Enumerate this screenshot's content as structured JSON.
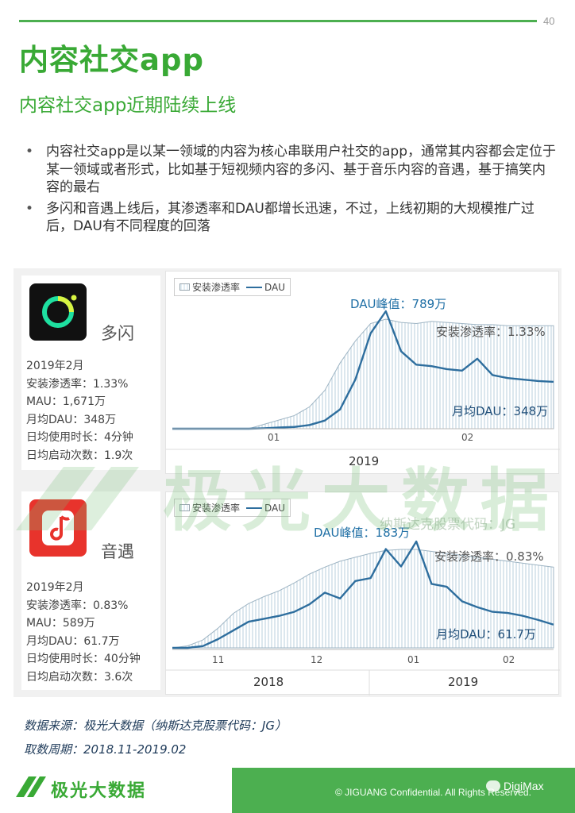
{
  "page_number": "40",
  "title": "内容社交app",
  "subtitle": "内容社交app近期陆续上线",
  "bullets": [
    "内容社交app是以某一领域的内容为核心串联用户社交的app，通常其内容都会定位于某一领域或者形式，比如基于短视频内容的多闪、基于音乐内容的音遇，基于搞笑内容的最右",
    "多闪和音遇上线后，其渗透率和DAU都增长迅速，不过，上线初期的大规模推广过后，DAU有不同程度的回落"
  ],
  "apps": [
    {
      "name": "多闪",
      "icon": "duoshan-app-icon",
      "stats": [
        "2019年2月",
        "安装渗透率：1.33%",
        "MAU：1,671万",
        "月均DAU：348万",
        "日均使用时长：4分钟",
        "日均启动次数：1.9次"
      ],
      "legend": {
        "penetration": "安装渗透率",
        "dau": "DAU"
      },
      "peak_label": "DAU峰值：789万",
      "penetration_label": "安装渗透率：1.33%",
      "avg_label": "月均DAU：348万",
      "ticks": [
        "01",
        "02"
      ],
      "years": [
        "2019"
      ]
    },
    {
      "name": "音遇",
      "icon": "yinyu-app-icon",
      "stats": [
        "2019年2月",
        "安装渗透率：0.83%",
        "MAU：589万",
        "月均DAU：61.7万",
        "日均使用时长：40分钟",
        "日均启动次数：3.6次"
      ],
      "legend": {
        "penetration": "安装渗透率",
        "dau": "DAU"
      },
      "peak_label": "DAU峰值：183万",
      "penetration_label": "安装渗透率：0.83%",
      "avg_label": "月均DAU：61.7万",
      "ticks": [
        "11",
        "12",
        "01",
        "02"
      ],
      "years": [
        "2018",
        "2019"
      ]
    }
  ],
  "chart_data": [
    {
      "type": "line",
      "series": [
        {
          "name": "安装渗透率",
          "style": "hatched-area",
          "color": "#9fb5c4"
        },
        {
          "name": "DAU",
          "style": "line",
          "color": "#2e6e9e"
        }
      ],
      "annotations": [
        "DAU峰值：789万",
        "安装渗透率：1.33%",
        "月均DAU：348万"
      ],
      "x_ticks": [
        "01",
        "02"
      ],
      "x_groups": [
        "2019"
      ],
      "dau_peak": 789,
      "dau_monthly_avg": 348,
      "penetration_latest": 1.33,
      "x": [
        0,
        4,
        8,
        12,
        16,
        20,
        24,
        28,
        32,
        36,
        40,
        44,
        48,
        52,
        56,
        60,
        64,
        68,
        72,
        76,
        80,
        84,
        88,
        92,
        96,
        100
      ],
      "dau": [
        0,
        0,
        0,
        0,
        0,
        0,
        3,
        8,
        12,
        25,
        55,
        130,
        330,
        640,
        789,
        520,
        430,
        420,
        400,
        390,
        470,
        360,
        340,
        330,
        320,
        315
      ],
      "penetration_rel": [
        0,
        0,
        0,
        0,
        0,
        0,
        4,
        8,
        12,
        20,
        35,
        60,
        80,
        96,
        100,
        97,
        96,
        98,
        97,
        96,
        95,
        95,
        94,
        94,
        94,
        94
      ]
    },
    {
      "type": "line",
      "series": [
        {
          "name": "安装渗透率",
          "style": "hatched-area",
          "color": "#9fb5c4"
        },
        {
          "name": "DAU",
          "style": "line",
          "color": "#2e6e9e"
        }
      ],
      "annotations": [
        "DAU峰值：183万",
        "安装渗透率：0.83%",
        "月均DAU：61.7万"
      ],
      "x_ticks": [
        "11",
        "12",
        "01",
        "02"
      ],
      "x_groups": [
        "2018",
        "2019"
      ],
      "dau_peak": 183,
      "dau_monthly_avg": 61.7,
      "penetration_latest": 0.83,
      "x": [
        0,
        4,
        8,
        12,
        16,
        20,
        24,
        28,
        32,
        36,
        40,
        44,
        48,
        52,
        56,
        60,
        64,
        68,
        72,
        76,
        80,
        84,
        88,
        92,
        96,
        100
      ],
      "dau": [
        0,
        0,
        3,
        15,
        30,
        45,
        50,
        55,
        62,
        75,
        95,
        85,
        115,
        120,
        170,
        140,
        183,
        110,
        105,
        80,
        70,
        62,
        60,
        55,
        48,
        40
      ],
      "penetration_rel": [
        0,
        2,
        8,
        20,
        35,
        45,
        52,
        58,
        66,
        75,
        82,
        88,
        92,
        96,
        99,
        100,
        100,
        98,
        96,
        94,
        92,
        90,
        88,
        86,
        84,
        82
      ]
    }
  ],
  "source_line": "数据来源：极光大数据（纳斯达克股票代码：JG）",
  "period_line": "取数周期：2018.11-2019.02",
  "watermark": {
    "brand": "极光大数据",
    "ticker": "纳斯达克股票代码：JG"
  },
  "footer": {
    "brand": "极光大数据",
    "confidential": "© JIGUANG Confidential. All Rights Reserved.",
    "channel": "DigiMax"
  },
  "colors": {
    "accent": "#39a935",
    "footer_band": "#4caf50",
    "dau_line": "#2e6e9e"
  }
}
